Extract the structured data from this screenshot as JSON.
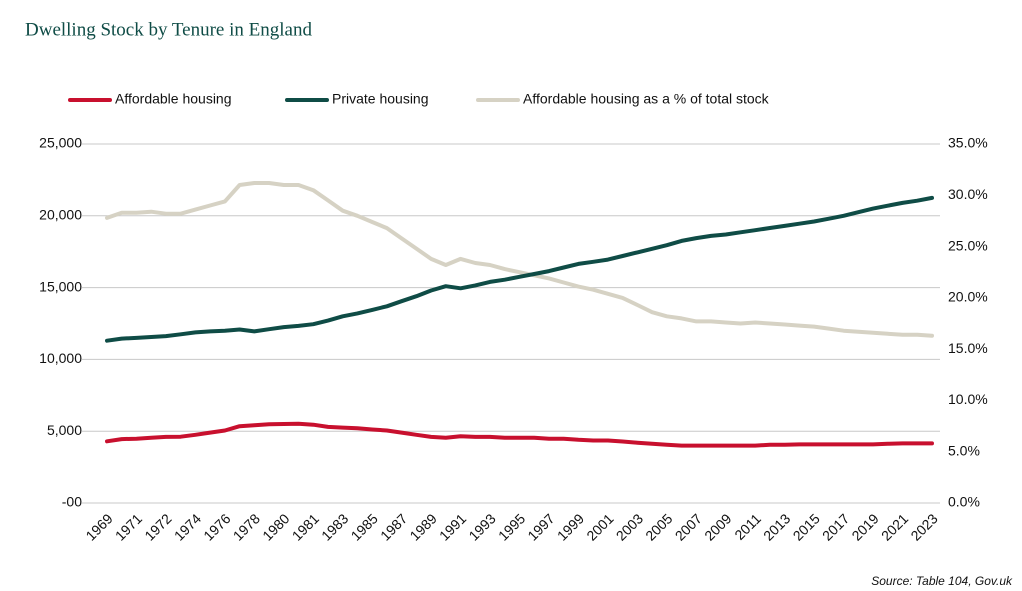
{
  "chart_data": {
    "type": "line",
    "title": "Dwelling Stock by Tenure in England",
    "source": "Source: Table 104, Gov.uk",
    "categories": [
      "1969",
      null,
      "1971",
      null,
      "1972",
      null,
      "1974",
      null,
      "1976",
      null,
      "1978",
      null,
      "1980",
      null,
      "1981",
      null,
      "1983",
      null,
      "1985",
      null,
      "1987",
      null,
      "1989",
      null,
      "1991",
      null,
      "1993",
      null,
      "1995",
      null,
      "1997",
      null,
      "1999",
      null,
      "2001",
      null,
      "2003",
      null,
      "2005",
      null,
      "2007",
      null,
      "2009",
      null,
      "2011",
      null,
      "2013",
      null,
      "2015",
      null,
      "2017",
      null,
      "2019",
      null,
      "2021",
      null,
      "2023"
    ],
    "series": [
      {
        "name": "Affordable housing",
        "color": "#c8102e",
        "values": [
          4300,
          4450,
          4480,
          4550,
          4600,
          4620,
          4750,
          4900,
          5050,
          5350,
          5420,
          5480,
          5500,
          5520,
          5450,
          5300,
          5250,
          5200,
          5120,
          5050,
          4900,
          4750,
          4600,
          4550,
          4650,
          4600,
          4600,
          4550,
          4550,
          4550,
          4480,
          4480,
          4400,
          4350,
          4350,
          4280,
          4200,
          4130,
          4050,
          4000,
          4000,
          4000,
          4000,
          4000,
          4000,
          4050,
          4050,
          4080,
          4080,
          4080,
          4080,
          4080,
          4080,
          4120,
          4150,
          4150,
          4150
        ]
      },
      {
        "name": "Private housing",
        "color": "#0f4c46",
        "values": [
          11300,
          11450,
          11500,
          11560,
          11620,
          11750,
          11880,
          11950,
          12000,
          12080,
          11950,
          12100,
          12250,
          12330,
          12450,
          12700,
          13000,
          13200,
          13450,
          13700,
          14050,
          14400,
          14800,
          15100,
          14950,
          15150,
          15400,
          15550,
          15750,
          15950,
          16150,
          16400,
          16650,
          16800,
          16950,
          17200,
          17450,
          17700,
          17950,
          18250,
          18450,
          18600,
          18700,
          18850,
          19000,
          19150,
          19300,
          19450,
          19600,
          19800,
          20000,
          20250,
          20500,
          20700,
          20900,
          21050,
          21250
        ]
      },
      {
        "name": "Affordable housing as a % of total stock",
        "color": "#d6d2c4",
        "axis": "y2",
        "values": [
          27.8,
          28.3,
          28.3,
          28.4,
          28.2,
          28.2,
          28.6,
          29.0,
          29.4,
          31.0,
          31.2,
          31.2,
          31.0,
          31.0,
          30.5,
          29.5,
          28.5,
          28.0,
          27.4,
          26.8,
          25.8,
          24.8,
          23.8,
          23.2,
          23.8,
          23.4,
          23.2,
          22.8,
          22.5,
          22.2,
          21.9,
          21.5,
          21.1,
          20.8,
          20.4,
          20.0,
          19.3,
          18.6,
          18.2,
          18.0,
          17.7,
          17.7,
          17.6,
          17.5,
          17.6,
          17.5,
          17.4,
          17.3,
          17.2,
          17.0,
          16.8,
          16.7,
          16.6,
          16.5,
          16.4,
          16.4,
          16.3
        ]
      }
    ],
    "ylim": [
      0,
      25000
    ],
    "yticks": [
      {
        "value": 0,
        "label": "-00"
      },
      {
        "value": 5000,
        "label": "5,000"
      },
      {
        "value": 10000,
        "label": "10,000"
      },
      {
        "value": 15000,
        "label": "15,000"
      },
      {
        "value": 20000,
        "label": "20,000"
      },
      {
        "value": 25000,
        "label": "25,000"
      }
    ],
    "y2lim": [
      0,
      35
    ],
    "y2ticks": [
      {
        "value": 0,
        "label": "0.0%"
      },
      {
        "value": 5,
        "label": "5.0%"
      },
      {
        "value": 10,
        "label": "10.0%"
      },
      {
        "value": 15,
        "label": "15.0%"
      },
      {
        "value": 20,
        "label": "20.0%"
      },
      {
        "value": 25,
        "label": "25.0%"
      },
      {
        "value": 30,
        "label": "30.0%"
      },
      {
        "value": 35,
        "label": "35.0%"
      }
    ],
    "grid": true
  }
}
